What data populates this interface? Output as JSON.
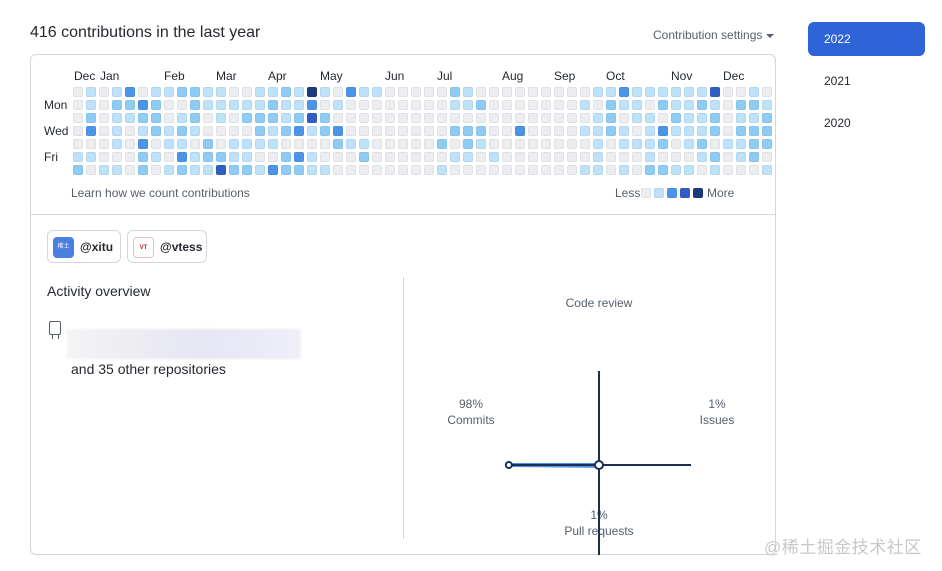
{
  "header": {
    "title": "416 contributions in the last year",
    "settings_label": "Contribution settings"
  },
  "years": [
    "2022",
    "2021",
    "2020"
  ],
  "active_year": "2022",
  "calendar": {
    "months": [
      "Dec",
      "Jan",
      "Feb",
      "Mar",
      "Apr",
      "May",
      "Jun",
      "Jul",
      "Aug",
      "Sep",
      "Oct",
      "Nov",
      "Dec"
    ],
    "days": [
      "Mon",
      "Wed",
      "Fri"
    ],
    "palette": [
      "#ebedf0",
      "#bfe2fb",
      "#8fccf5",
      "#4b95e8",
      "#2f5fc4",
      "#1c3a7a"
    ],
    "levels": [
      "0000012",
      "1123010",
      "0000001",
      "1211101",
      "3210000",
      "0321322",
      "1222010",
      "1001101",
      "2012132",
      "2221011",
      "1100221",
      "1110024",
      "0100112",
      "0120112",
      "1122101",
      "1221103",
      "2112022",
      "1123032",
      "5341011",
      "1022001",
      "0103200",
      "3000100",
      "1000120",
      "1000000",
      "0000000",
      "0000000",
      "0000000",
      "0000000",
      "0000201",
      "2102010",
      "1102210",
      "0202100",
      "0000010",
      "0000000",
      "0003000",
      "0000000",
      "0000000",
      "0000000",
      "0000000",
      "0101001",
      "1011111",
      "1222000",
      "3101101",
      "1110100",
      "1011112",
      "1203202",
      "1121001",
      "1111101",
      "1211210",
      "4122021",
      "0000100",
      "0212110",
      "1212220",
      "0122201"
    ],
    "learn_link": "Learn how we count contributions",
    "legend_less": "Less",
    "legend_more": "More"
  },
  "organizations": [
    {
      "handle": "@xitu",
      "avatar_text": "稀土",
      "avatar_color": "#4a7fe0"
    },
    {
      "handle": "@vtess",
      "avatar_text": "VT",
      "avatar_color": "#ffffff"
    }
  ],
  "activity": {
    "title": "Activity overview",
    "other_repos": "and 35 other repositories",
    "axes": {
      "top_label": "Code review",
      "left_pct": "98%",
      "left_label": "Commits",
      "right_pct": "1%",
      "right_label": "Issues",
      "bottom_pct": "1%",
      "bottom_label": "Pull requests"
    },
    "values": {
      "code_review": 0,
      "commits": 98,
      "issues": 1,
      "pull_requests": 1
    },
    "line_color": "#1b2f55",
    "fill_color": "#4b95e8"
  },
  "watermark": "@稀土掘金技术社区"
}
